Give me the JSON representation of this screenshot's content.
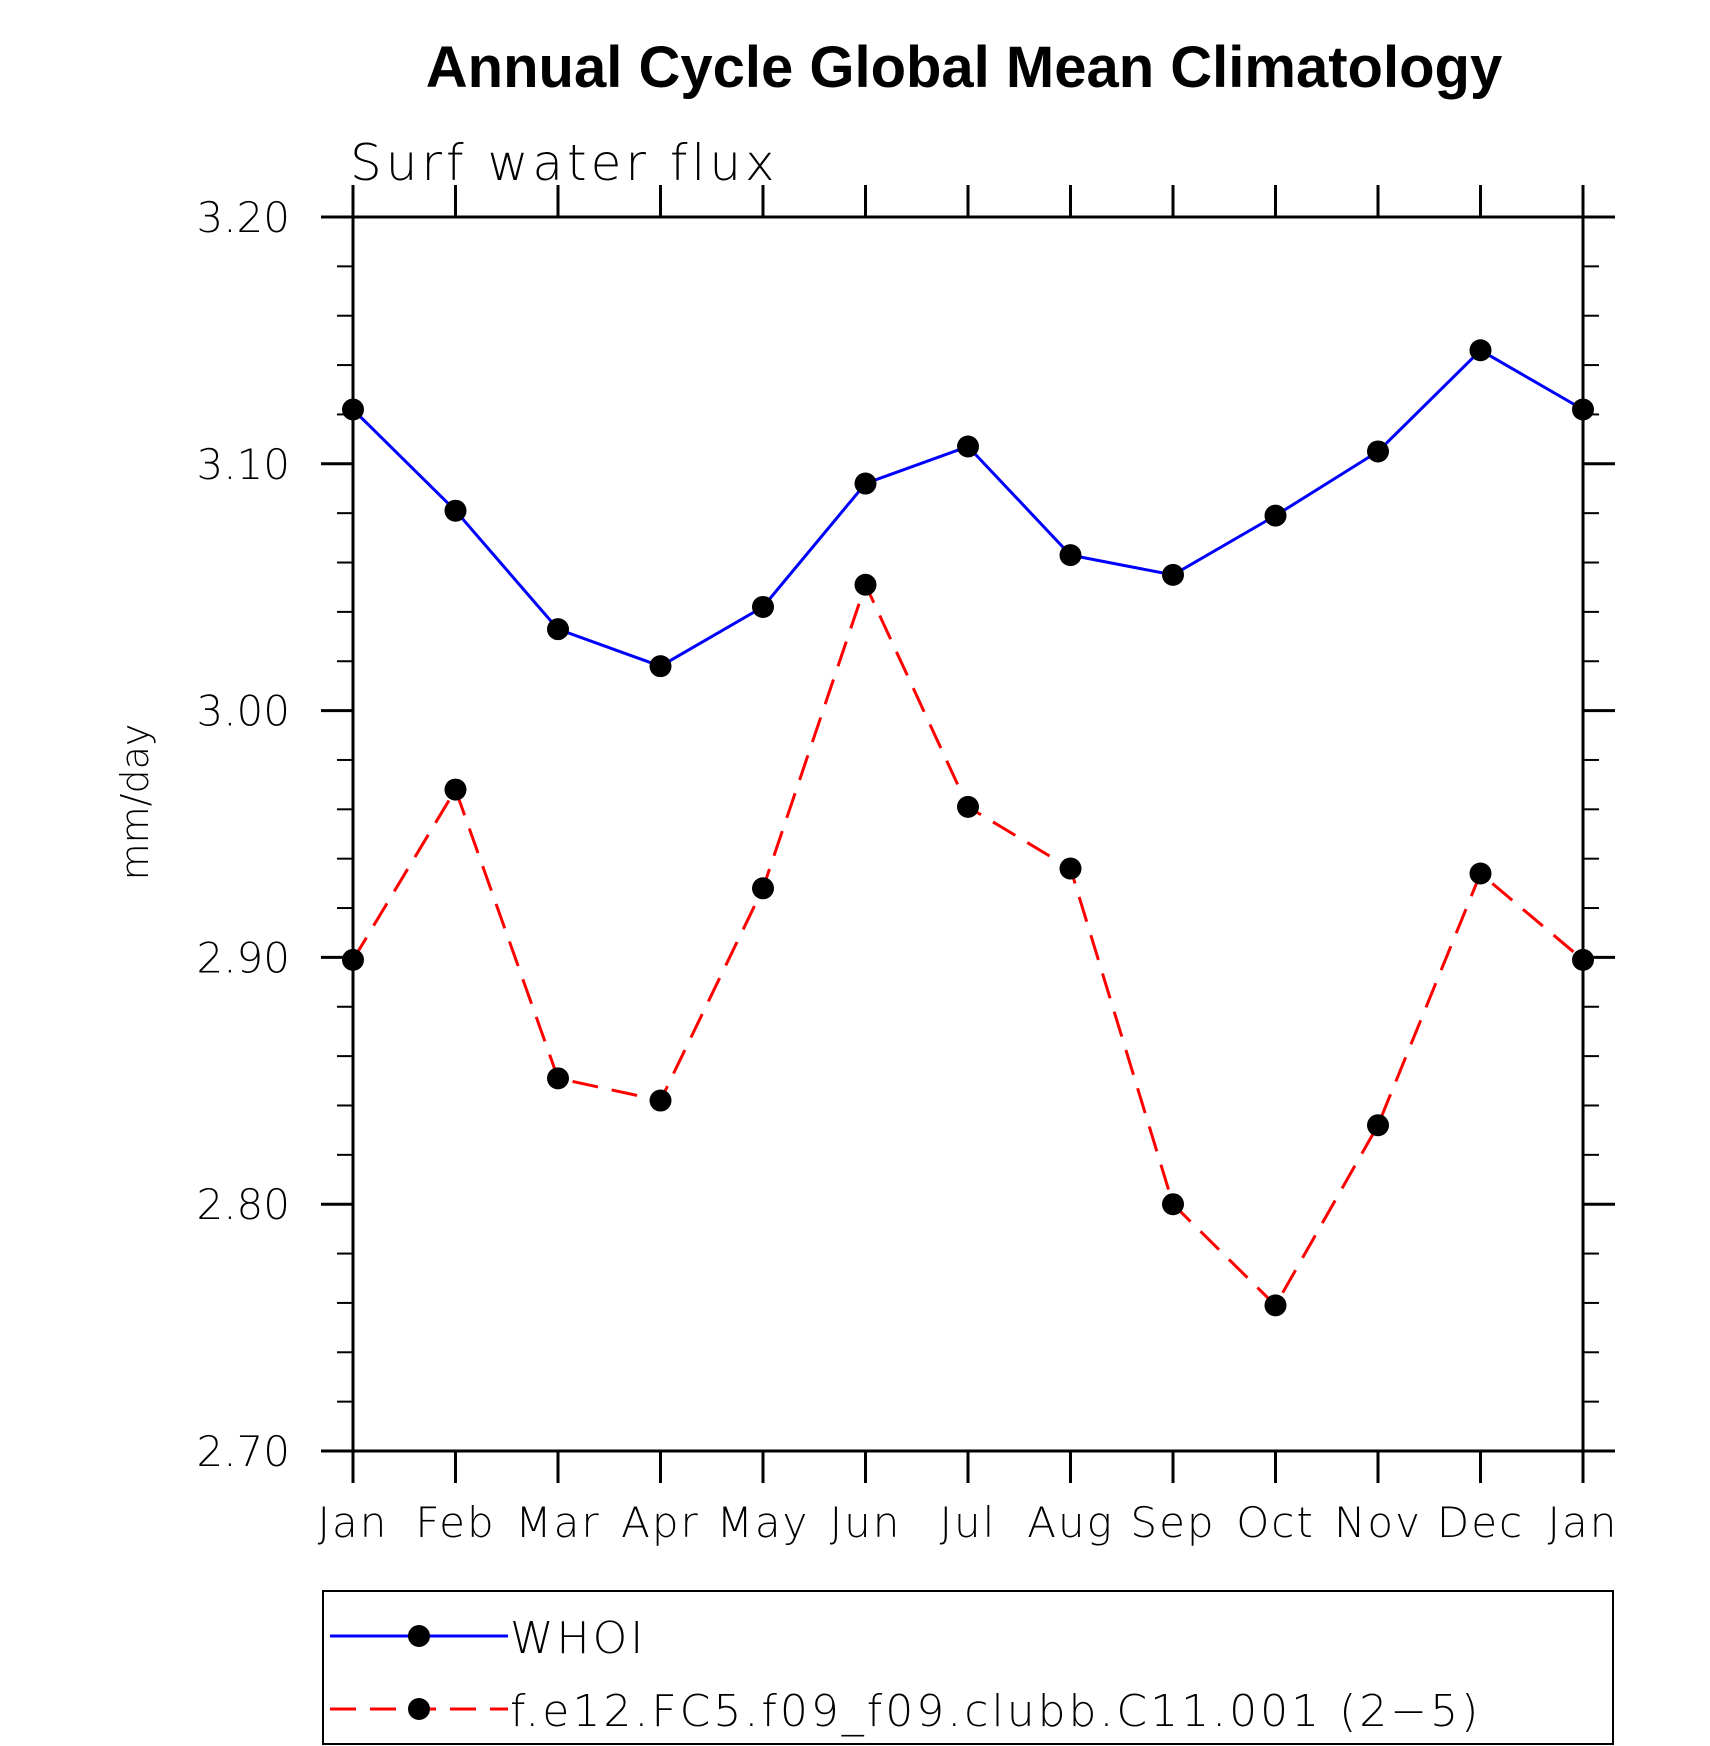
{
  "chart_data": {
    "type": "line",
    "title": "Annual Cycle Global Mean Climatology",
    "subtitle": "Surf water flux",
    "xlabel": "",
    "ylabel": "mm/day",
    "categories": [
      "Jan",
      "Feb",
      "Mar",
      "Apr",
      "May",
      "Jun",
      "Jul",
      "Aug",
      "Sep",
      "Oct",
      "Nov",
      "Dec",
      "Jan"
    ],
    "ylim": [
      2.7,
      3.2
    ],
    "y_ticks": [
      "2.70",
      "2.80",
      "2.90",
      "3.00",
      "3.10",
      "3.20"
    ],
    "grid": false,
    "legend_position": "bottom",
    "series": [
      {
        "name": "WHOI",
        "color": "#0000ff",
        "dash": "solid",
        "marker": "filled-circle",
        "values": [
          3.122,
          3.081,
          3.033,
          3.018,
          3.042,
          3.092,
          3.107,
          3.063,
          3.055,
          3.079,
          3.105,
          3.146,
          3.122
        ]
      },
      {
        "name": "f.e12.FC5.f09_f09.clubb.C11.001 (2−5)",
        "color": "#ff0000",
        "dash": "dashed",
        "marker": "filled-circle",
        "values": [
          2.899,
          2.968,
          2.851,
          2.842,
          2.928,
          3.051,
          2.961,
          2.936,
          2.8,
          2.759,
          2.832,
          2.934,
          2.899
        ]
      }
    ]
  }
}
